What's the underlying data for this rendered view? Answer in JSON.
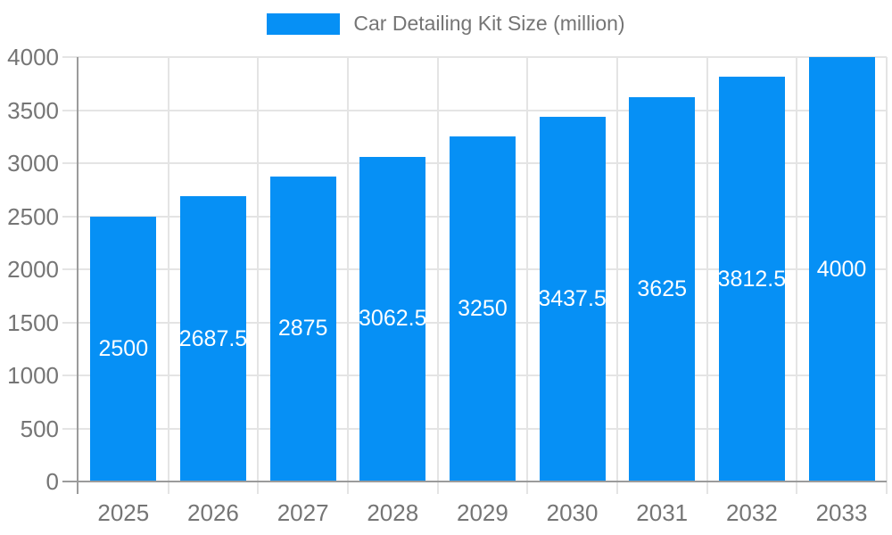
{
  "legend": {
    "position": "top-center",
    "label": "Car Detailing Kit Size (million)"
  },
  "chart_data": {
    "type": "bar",
    "title": "Car Detailing Kit Size (million)",
    "categories": [
      "2025",
      "2026",
      "2027",
      "2028",
      "2029",
      "2030",
      "2031",
      "2032",
      "2033"
    ],
    "values": [
      2500,
      2687.5,
      2875,
      3062.5,
      3250,
      3437.5,
      3625,
      3812.5,
      4000
    ],
    "value_labels": [
      "2500",
      "2687.5",
      "2875",
      "3062.5",
      "3250",
      "3437.5",
      "3625",
      "3812.5",
      "4000"
    ],
    "xlabel": "",
    "ylabel": "",
    "ylim": [
      0,
      4000
    ],
    "ytick_step": 500,
    "ytick_labels": [
      "0",
      "500",
      "1000",
      "1500",
      "2000",
      "2500",
      "3000",
      "3500",
      "4000"
    ],
    "grid": true,
    "value_label_position": "center-inside-bar",
    "legend_position": "top-center",
    "colors": {
      "bar": "#0690F5",
      "value_label": "#ffffff",
      "axis_text": "#757575",
      "grid": "#e4e4e4",
      "axis_line": "#9b9b9b"
    }
  }
}
